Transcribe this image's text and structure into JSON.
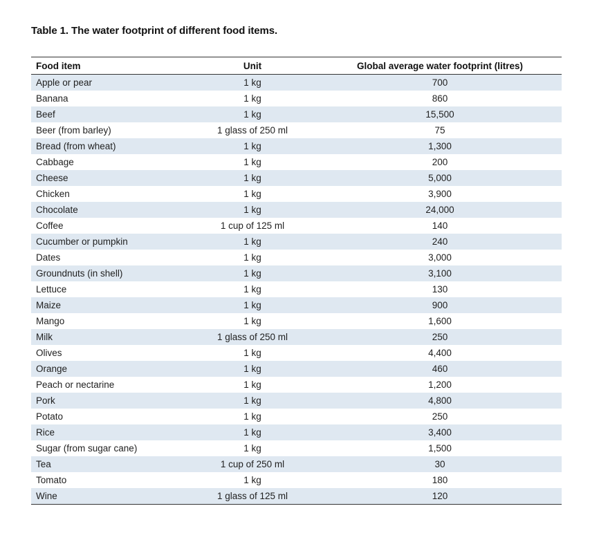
{
  "caption": "Table 1. The water footprint of different food items.",
  "table": {
    "headers": {
      "food": "Food item",
      "unit": "Unit",
      "footprint": "Global average water footprint (litres)"
    },
    "rows": [
      {
        "food": "Apple or pear",
        "unit": "1 kg",
        "footprint": "700"
      },
      {
        "food": "Banana",
        "unit": "1 kg",
        "footprint": "860"
      },
      {
        "food": "Beef",
        "unit": "1 kg",
        "footprint": "15,500"
      },
      {
        "food": "Beer (from barley)",
        "unit": "1 glass of 250 ml",
        "footprint": "75"
      },
      {
        "food": "Bread (from wheat)",
        "unit": "1 kg",
        "footprint": "1,300"
      },
      {
        "food": "Cabbage",
        "unit": "1 kg",
        "footprint": "200"
      },
      {
        "food": "Cheese",
        "unit": "1 kg",
        "footprint": "5,000"
      },
      {
        "food": "Chicken",
        "unit": "1 kg",
        "footprint": "3,900"
      },
      {
        "food": "Chocolate",
        "unit": "1 kg",
        "footprint": "24,000"
      },
      {
        "food": "Coffee",
        "unit": "1 cup of 125 ml",
        "footprint": "140"
      },
      {
        "food": "Cucumber or pumpkin",
        "unit": "1 kg",
        "footprint": "240"
      },
      {
        "food": "Dates",
        "unit": "1 kg",
        "footprint": "3,000"
      },
      {
        "food": "Groundnuts (in shell)",
        "unit": "1 kg",
        "footprint": "3,100"
      },
      {
        "food": "Lettuce",
        "unit": "1 kg",
        "footprint": "130"
      },
      {
        "food": "Maize",
        "unit": "1 kg",
        "footprint": "900"
      },
      {
        "food": "Mango",
        "unit": "1 kg",
        "footprint": "1,600"
      },
      {
        "food": "Milk",
        "unit": "1 glass of 250 ml",
        "footprint": "250"
      },
      {
        "food": "Olives",
        "unit": "1 kg",
        "footprint": "4,400"
      },
      {
        "food": "Orange",
        "unit": "1 kg",
        "footprint": "460"
      },
      {
        "food": "Peach or nectarine",
        "unit": "1 kg",
        "footprint": "1,200"
      },
      {
        "food": "Pork",
        "unit": "1 kg",
        "footprint": "4,800"
      },
      {
        "food": "Potato",
        "unit": "1 kg",
        "footprint": "250"
      },
      {
        "food": "Rice",
        "unit": "1 kg",
        "footprint": "3,400"
      },
      {
        "food": "Sugar (from sugar cane)",
        "unit": "1 kg",
        "footprint": "1,500"
      },
      {
        "food": "Tea",
        "unit": "1 cup of 250 ml",
        "footprint": "30"
      },
      {
        "food": "Tomato",
        "unit": "1 kg",
        "footprint": "180"
      },
      {
        "food": "Wine",
        "unit": "1 glass of 125 ml",
        "footprint": "120"
      }
    ]
  },
  "colors": {
    "stripe": "#dfe8f1",
    "rule": "#333333"
  }
}
